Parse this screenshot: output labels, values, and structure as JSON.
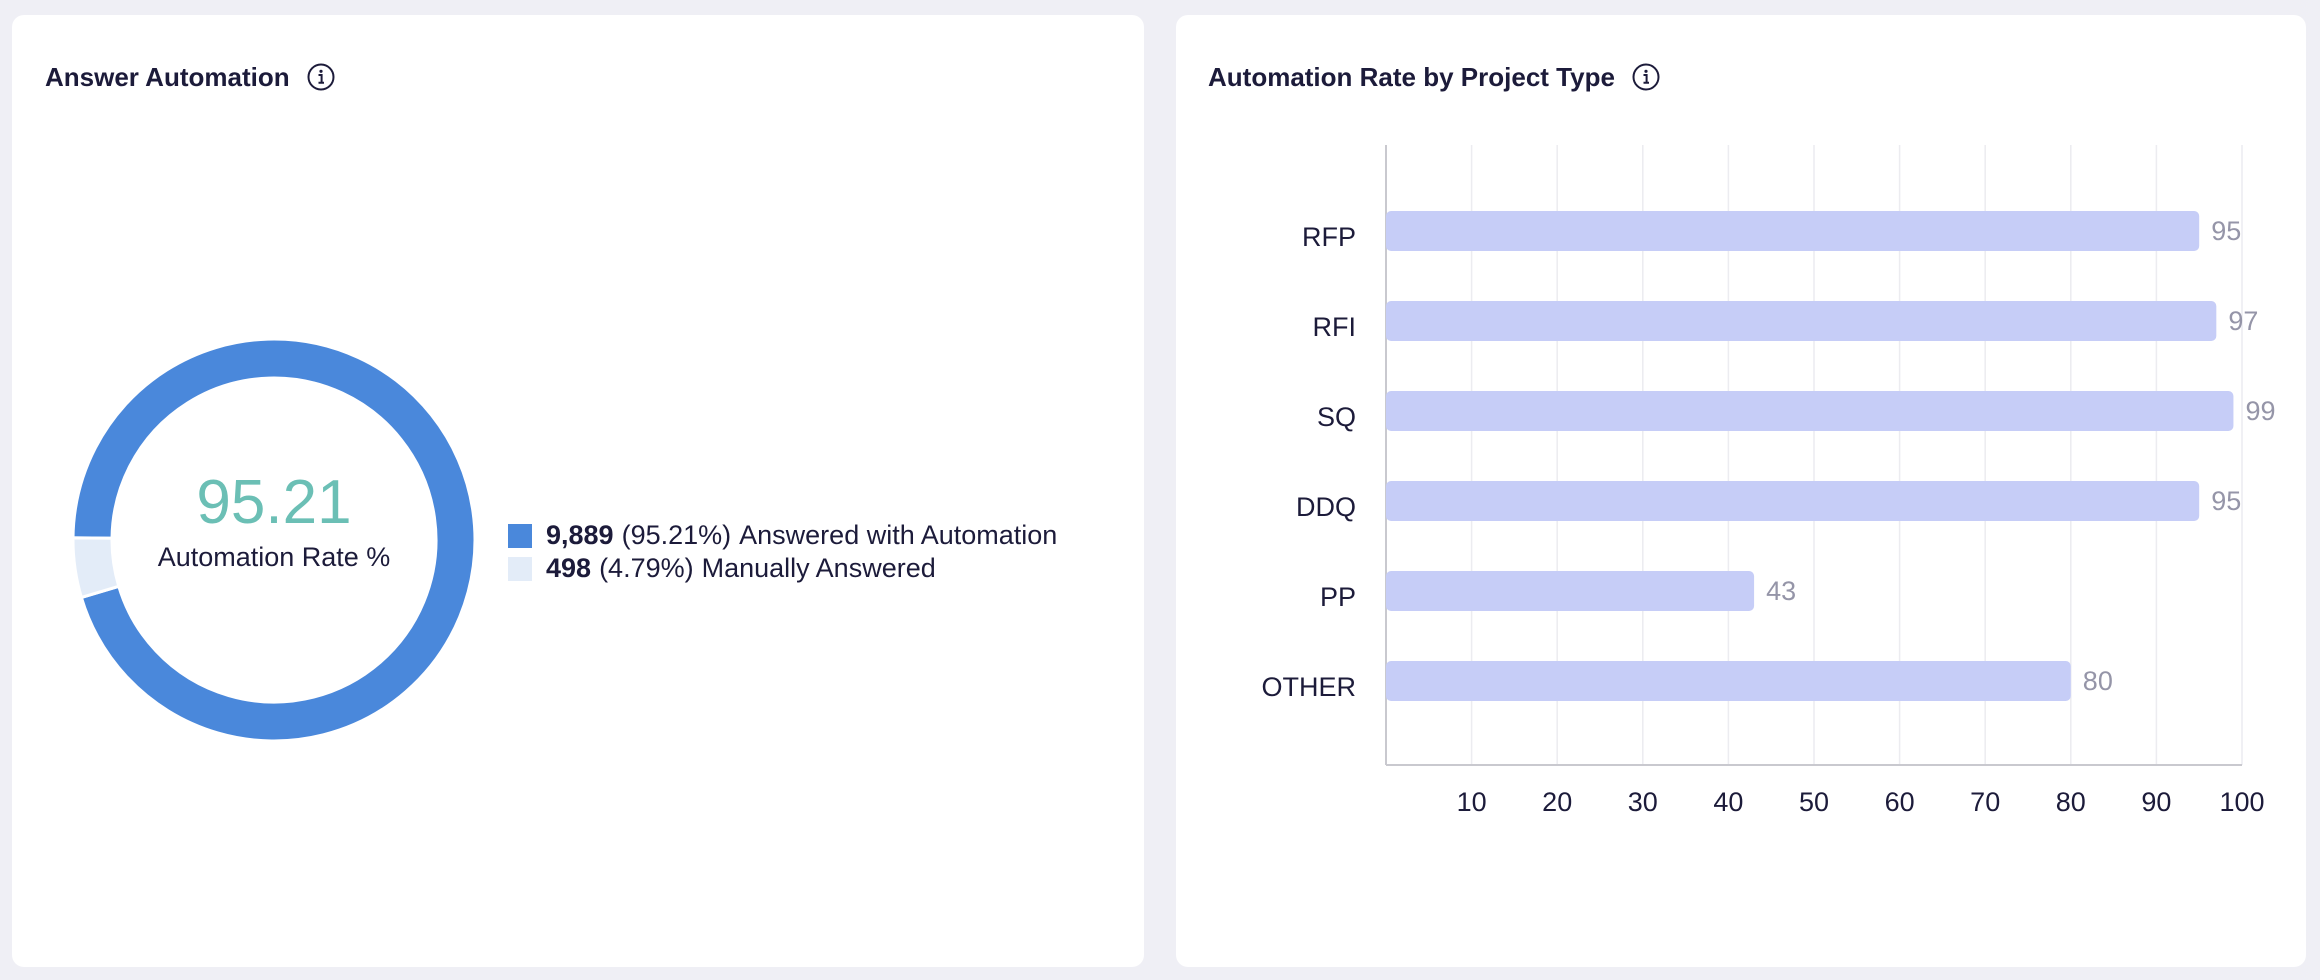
{
  "answer_automation": {
    "title": "Answer Automation",
    "info_icon": "info-icon",
    "center_value": "95.21",
    "center_caption": "Automation Rate %",
    "colors": {
      "automated": "#4a88db",
      "manual": "#e3ecf8",
      "center_value": "#6bbfb5"
    },
    "legend": [
      {
        "count": "9,889",
        "percent": "(95.21%)",
        "label": "Answered with Automation",
        "share": 95.21,
        "color": "#4a88db"
      },
      {
        "count": "498",
        "percent": "(4.79%)",
        "label": "Manually Answered",
        "share": 4.79,
        "color": "#e3ecf8"
      }
    ]
  },
  "automation_by_type": {
    "title": "Automation Rate by Project Type",
    "info_icon": "info-icon",
    "chart_data": {
      "type": "bar",
      "orientation": "horizontal",
      "categories": [
        "RFP",
        "RFI",
        "SQ",
        "DDQ",
        "PP",
        "OTHER"
      ],
      "values": [
        95,
        97,
        99,
        95,
        43,
        80
      ],
      "xlim": [
        0,
        100
      ],
      "xticks": [
        10,
        20,
        30,
        40,
        50,
        60,
        70,
        80,
        90,
        100
      ],
      "grid": true,
      "bar_color": "#c6cdf7",
      "label_color": "#9595a8"
    }
  }
}
